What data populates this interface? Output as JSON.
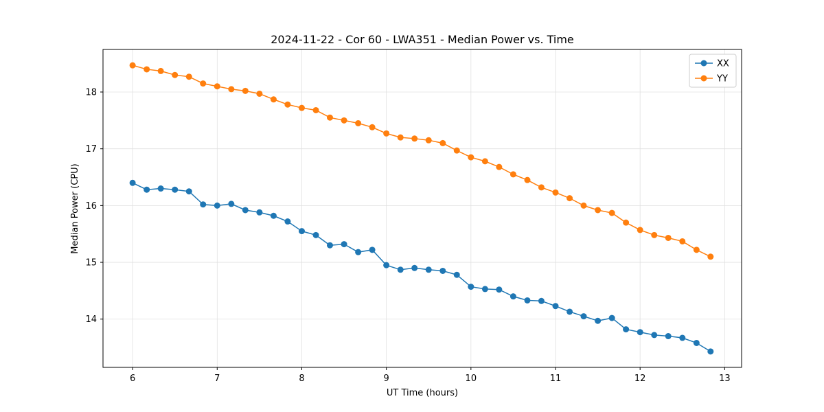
{
  "page": {
    "background": "#ffffff"
  },
  "chart_data": {
    "type": "line",
    "title": "2024-11-22 - Cor 60 - LWA351 - Median Power vs. Time",
    "xlabel": "UT Time (hours)",
    "ylabel": "Median Power (CPU)",
    "xlim": [
      5.65,
      13.2
    ],
    "ylim": [
      13.15,
      18.75
    ],
    "xticks": [
      6,
      7,
      8,
      9,
      10,
      11,
      12,
      13
    ],
    "yticks": [
      14,
      15,
      16,
      17,
      18
    ],
    "grid": true,
    "grid_color": "#e0e0e0",
    "spine_color": "#000000",
    "legend": {
      "position": "upper right",
      "entries": [
        "XX",
        "YY"
      ]
    },
    "x": [
      6.0,
      6.167,
      6.333,
      6.5,
      6.667,
      6.833,
      7.0,
      7.167,
      7.333,
      7.5,
      7.667,
      7.833,
      8.0,
      8.167,
      8.333,
      8.5,
      8.667,
      8.833,
      9.0,
      9.167,
      9.333,
      9.5,
      9.667,
      9.833,
      10.0,
      10.167,
      10.333,
      10.5,
      10.667,
      10.833,
      11.0,
      11.167,
      11.333,
      11.5,
      11.667,
      11.833,
      12.0,
      12.167,
      12.333,
      12.5,
      12.667,
      12.833
    ],
    "series": [
      {
        "name": "XX",
        "color": "#1f77b4",
        "values": [
          16.4,
          16.28,
          16.3,
          16.28,
          16.25,
          16.02,
          16.0,
          16.03,
          15.92,
          15.88,
          15.82,
          15.72,
          15.55,
          15.48,
          15.3,
          15.32,
          15.18,
          15.22,
          14.95,
          14.87,
          14.9,
          14.87,
          14.85,
          14.78,
          14.57,
          14.53,
          14.52,
          14.4,
          14.33,
          14.32,
          14.23,
          14.13,
          14.05,
          13.97,
          14.02,
          13.82,
          13.77,
          13.72,
          13.7,
          13.67,
          13.58,
          13.43
        ]
      },
      {
        "name": "YY",
        "color": "#ff7f0e",
        "values": [
          18.47,
          18.4,
          18.37,
          18.3,
          18.27,
          18.15,
          18.1,
          18.05,
          18.02,
          17.97,
          17.87,
          17.78,
          17.72,
          17.68,
          17.55,
          17.5,
          17.45,
          17.38,
          17.27,
          17.2,
          17.18,
          17.15,
          17.1,
          16.97,
          16.85,
          16.78,
          16.68,
          16.55,
          16.45,
          16.32,
          16.23,
          16.13,
          16.0,
          15.92,
          15.87,
          15.7,
          15.57,
          15.48,
          15.43,
          15.37,
          15.22,
          15.1
        ]
      }
    ]
  }
}
